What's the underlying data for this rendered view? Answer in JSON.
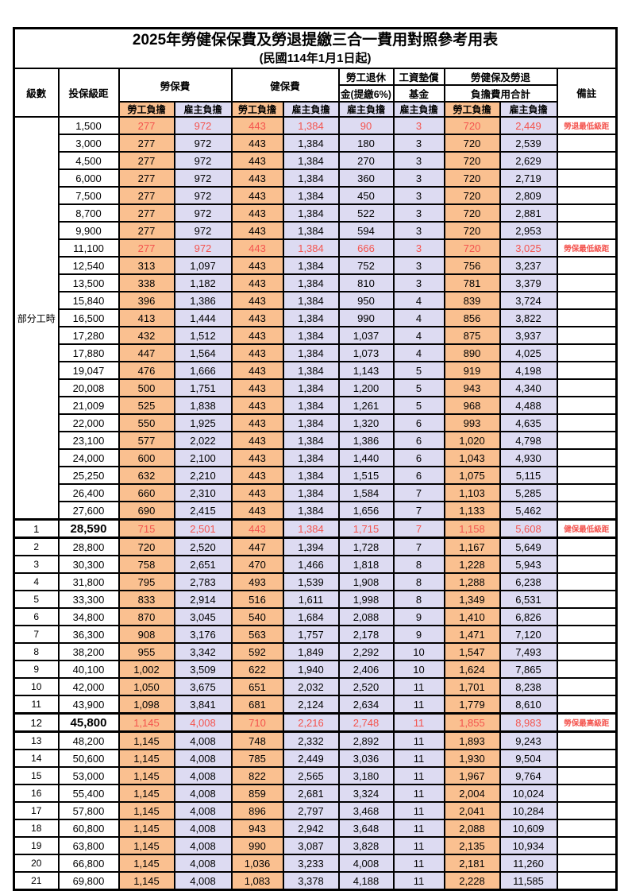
{
  "title": "2025年勞健保保費及勞退提繳三合一費用對照參考用表",
  "subtitle": "(民國114年1月1日起)",
  "colors": {
    "employee_share_bg": "#FAC090",
    "employer_share_bg": "#DDDBF2",
    "highlight_red": "#F4544E",
    "grid_border": "#000000"
  },
  "header": {
    "level": "級數",
    "bracket": "投保級距",
    "labor_insurance": "勞保費",
    "health_insurance": "健保費",
    "pension_line1": "勞工退休",
    "pension_line2": "金(提繳6%)",
    "wage_fund_line1": "工資墊償",
    "wage_fund_line2": "基金",
    "total_line1": "勞健保及勞退",
    "total_line2": "負擔費用合計",
    "employee_share": "勞工負擔",
    "employer_share": "雇主負擔",
    "remark": "備註"
  },
  "part_time_label": "部分工時",
  "part_time_rowspan": 23,
  "rows": [
    {
      "bracket": "1,500",
      "values": [
        "277",
        "972",
        "443",
        "1,384",
        "90",
        "3",
        "720",
        "2,449"
      ],
      "remark": "勞退最低級距",
      "red": true
    },
    {
      "bracket": "3,000",
      "values": [
        "277",
        "972",
        "443",
        "1,384",
        "180",
        "3",
        "720",
        "2,539"
      ],
      "remark": ""
    },
    {
      "bracket": "4,500",
      "values": [
        "277",
        "972",
        "443",
        "1,384",
        "270",
        "3",
        "720",
        "2,629"
      ],
      "remark": ""
    },
    {
      "bracket": "6,000",
      "values": [
        "277",
        "972",
        "443",
        "1,384",
        "360",
        "3",
        "720",
        "2,719"
      ],
      "remark": ""
    },
    {
      "bracket": "7,500",
      "values": [
        "277",
        "972",
        "443",
        "1,384",
        "450",
        "3",
        "720",
        "2,809"
      ],
      "remark": ""
    },
    {
      "bracket": "8,700",
      "values": [
        "277",
        "972",
        "443",
        "1,384",
        "522",
        "3",
        "720",
        "2,881"
      ],
      "remark": ""
    },
    {
      "bracket": "9,900",
      "values": [
        "277",
        "972",
        "443",
        "1,384",
        "594",
        "3",
        "720",
        "2,953"
      ],
      "remark": ""
    },
    {
      "bracket": "11,100",
      "values": [
        "277",
        "972",
        "443",
        "1,384",
        "666",
        "3",
        "720",
        "3,025"
      ],
      "remark": "勞保最低級距",
      "red": true
    },
    {
      "bracket": "12,540",
      "values": [
        "313",
        "1,097",
        "443",
        "1,384",
        "752",
        "3",
        "756",
        "3,237"
      ],
      "remark": ""
    },
    {
      "bracket": "13,500",
      "values": [
        "338",
        "1,182",
        "443",
        "1,384",
        "810",
        "3",
        "781",
        "3,379"
      ],
      "remark": ""
    },
    {
      "bracket": "15,840",
      "values": [
        "396",
        "1,386",
        "443",
        "1,384",
        "950",
        "4",
        "839",
        "3,724"
      ],
      "remark": ""
    },
    {
      "bracket": "16,500",
      "values": [
        "413",
        "1,444",
        "443",
        "1,384",
        "990",
        "4",
        "856",
        "3,822"
      ],
      "remark": ""
    },
    {
      "bracket": "17,280",
      "values": [
        "432",
        "1,512",
        "443",
        "1,384",
        "1,037",
        "4",
        "875",
        "3,937"
      ],
      "remark": ""
    },
    {
      "bracket": "17,880",
      "values": [
        "447",
        "1,564",
        "443",
        "1,384",
        "1,073",
        "4",
        "890",
        "4,025"
      ],
      "remark": ""
    },
    {
      "bracket": "19,047",
      "values": [
        "476",
        "1,666",
        "443",
        "1,384",
        "1,143",
        "5",
        "919",
        "4,198"
      ],
      "remark": ""
    },
    {
      "bracket": "20,008",
      "values": [
        "500",
        "1,751",
        "443",
        "1,384",
        "1,200",
        "5",
        "943",
        "4,340"
      ],
      "remark": ""
    },
    {
      "bracket": "21,009",
      "values": [
        "525",
        "1,838",
        "443",
        "1,384",
        "1,261",
        "5",
        "968",
        "4,488"
      ],
      "remark": ""
    },
    {
      "bracket": "22,000",
      "values": [
        "550",
        "1,925",
        "443",
        "1,384",
        "1,320",
        "6",
        "993",
        "4,635"
      ],
      "remark": ""
    },
    {
      "bracket": "23,100",
      "values": [
        "577",
        "2,022",
        "443",
        "1,384",
        "1,386",
        "6",
        "1,020",
        "4,798"
      ],
      "remark": ""
    },
    {
      "bracket": "24,000",
      "values": [
        "600",
        "2,100",
        "443",
        "1,384",
        "1,440",
        "6",
        "1,043",
        "4,930"
      ],
      "remark": ""
    },
    {
      "bracket": "25,250",
      "values": [
        "632",
        "2,210",
        "443",
        "1,384",
        "1,515",
        "6",
        "1,075",
        "5,115"
      ],
      "remark": ""
    },
    {
      "bracket": "26,400",
      "values": [
        "660",
        "2,310",
        "443",
        "1,384",
        "1,584",
        "7",
        "1,103",
        "5,285"
      ],
      "remark": ""
    },
    {
      "bracket": "27,600",
      "values": [
        "690",
        "2,415",
        "443",
        "1,384",
        "1,656",
        "7",
        "1,133",
        "5,462"
      ],
      "remark": ""
    },
    {
      "level": "1",
      "bracket": "28,590",
      "values": [
        "715",
        "2,501",
        "443",
        "1,384",
        "1,715",
        "7",
        "1,158",
        "5,608"
      ],
      "remark": "健保最低級距",
      "red": true,
      "thick": true,
      "em": true
    },
    {
      "level": "2",
      "bracket": "28,800",
      "values": [
        "720",
        "2,520",
        "447",
        "1,394",
        "1,728",
        "7",
        "1,167",
        "5,649"
      ],
      "remark": ""
    },
    {
      "level": "3",
      "bracket": "30,300",
      "values": [
        "758",
        "2,651",
        "470",
        "1,466",
        "1,818",
        "8",
        "1,228",
        "5,943"
      ],
      "remark": ""
    },
    {
      "level": "4",
      "bracket": "31,800",
      "values": [
        "795",
        "2,783",
        "493",
        "1,539",
        "1,908",
        "8",
        "1,288",
        "6,238"
      ],
      "remark": ""
    },
    {
      "level": "5",
      "bracket": "33,300",
      "values": [
        "833",
        "2,914",
        "516",
        "1,611",
        "1,998",
        "8",
        "1,349",
        "6,531"
      ],
      "remark": ""
    },
    {
      "level": "6",
      "bracket": "34,800",
      "values": [
        "870",
        "3,045",
        "540",
        "1,684",
        "2,088",
        "9",
        "1,410",
        "6,826"
      ],
      "remark": ""
    },
    {
      "level": "7",
      "bracket": "36,300",
      "values": [
        "908",
        "3,176",
        "563",
        "1,757",
        "2,178",
        "9",
        "1,471",
        "7,120"
      ],
      "remark": ""
    },
    {
      "level": "8",
      "bracket": "38,200",
      "values": [
        "955",
        "3,342",
        "592",
        "1,849",
        "2,292",
        "10",
        "1,547",
        "7,493"
      ],
      "remark": ""
    },
    {
      "level": "9",
      "bracket": "40,100",
      "values": [
        "1,002",
        "3,509",
        "622",
        "1,940",
        "2,406",
        "10",
        "1,624",
        "7,865"
      ],
      "remark": ""
    },
    {
      "level": "10",
      "bracket": "42,000",
      "values": [
        "1,050",
        "3,675",
        "651",
        "2,032",
        "2,520",
        "11",
        "1,701",
        "8,238"
      ],
      "remark": ""
    },
    {
      "level": "11",
      "bracket": "43,900",
      "values": [
        "1,098",
        "3,841",
        "681",
        "2,124",
        "2,634",
        "11",
        "1,779",
        "8,610"
      ],
      "remark": ""
    },
    {
      "level": "12",
      "bracket": "45,800",
      "values": [
        "1,145",
        "4,008",
        "710",
        "2,216",
        "2,748",
        "11",
        "1,855",
        "8,983"
      ],
      "remark": "勞保最高級距",
      "red": true,
      "thick": true,
      "em": true
    },
    {
      "level": "13",
      "bracket": "48,200",
      "values": [
        "1,145",
        "4,008",
        "748",
        "2,332",
        "2,892",
        "11",
        "1,893",
        "9,243"
      ],
      "remark": ""
    },
    {
      "level": "14",
      "bracket": "50,600",
      "values": [
        "1,145",
        "4,008",
        "785",
        "2,449",
        "3,036",
        "11",
        "1,930",
        "9,504"
      ],
      "remark": ""
    },
    {
      "level": "15",
      "bracket": "53,000",
      "values": [
        "1,145",
        "4,008",
        "822",
        "2,565",
        "3,180",
        "11",
        "1,967",
        "9,764"
      ],
      "remark": ""
    },
    {
      "level": "16",
      "bracket": "55,400",
      "values": [
        "1,145",
        "4,008",
        "859",
        "2,681",
        "3,324",
        "11",
        "2,004",
        "10,024"
      ],
      "remark": ""
    },
    {
      "level": "17",
      "bracket": "57,800",
      "values": [
        "1,145",
        "4,008",
        "896",
        "2,797",
        "3,468",
        "11",
        "2,041",
        "10,284"
      ],
      "remark": ""
    },
    {
      "level": "18",
      "bracket": "60,800",
      "values": [
        "1,145",
        "4,008",
        "943",
        "2,942",
        "3,648",
        "11",
        "2,088",
        "10,609"
      ],
      "remark": ""
    },
    {
      "level": "19",
      "bracket": "63,800",
      "values": [
        "1,145",
        "4,008",
        "990",
        "3,087",
        "3,828",
        "11",
        "2,135",
        "10,934"
      ],
      "remark": ""
    },
    {
      "level": "20",
      "bracket": "66,800",
      "values": [
        "1,145",
        "4,008",
        "1,036",
        "3,233",
        "4,008",
        "11",
        "2,181",
        "11,260"
      ],
      "remark": ""
    },
    {
      "level": "21",
      "bracket": "69,800",
      "values": [
        "1,145",
        "4,008",
        "1,083",
        "3,378",
        "4,188",
        "11",
        "2,228",
        "11,585"
      ],
      "remark": ""
    }
  ]
}
